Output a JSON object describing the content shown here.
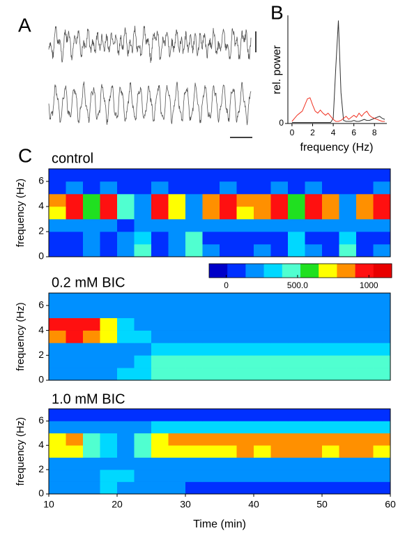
{
  "chart_data": [
    {
      "type": "traces",
      "label": "A"
    },
    {
      "type": "line",
      "label": "B",
      "xlabel": "frequency (Hz)",
      "ylabel": "rel. power",
      "x": [
        0,
        0.25,
        0.5,
        0.75,
        1,
        1.25,
        1.5,
        1.75,
        2,
        2.25,
        2.5,
        2.75,
        3,
        3.25,
        3.5,
        3.75,
        4,
        4.25,
        4.5,
        4.75,
        5,
        5.25,
        5.5,
        5.75,
        6,
        6.25,
        6.5,
        6.75,
        7,
        7.25,
        7.5,
        7.75,
        8,
        8.25,
        8.5,
        8.75,
        9
      ],
      "series": [
        {
          "color": "#303030",
          "values": [
            0.01,
            0.01,
            0.01,
            0.01,
            0.01,
            0.01,
            0.01,
            0.01,
            0.01,
            0.01,
            0.01,
            0.01,
            0.01,
            0.01,
            0.01,
            0.01,
            0.05,
            0.55,
            1.0,
            0.3,
            0.03,
            0.02,
            0.02,
            0.02,
            0.03,
            0.02,
            0.02,
            0.03,
            0.04,
            0.03,
            0.03,
            0.04,
            0.05,
            0.06,
            0.07,
            0.05,
            0.04
          ]
        },
        {
          "color": "#f03020",
          "values": [
            0.02,
            0.05,
            0.08,
            0.1,
            0.12,
            0.18,
            0.24,
            0.25,
            0.18,
            0.12,
            0.1,
            0.13,
            0.1,
            0.08,
            0.1,
            0.07,
            0.04,
            0.02,
            0.02,
            0.03,
            0.05,
            0.07,
            0.04,
            0.06,
            0.08,
            0.06,
            0.1,
            0.07,
            0.1,
            0.12,
            0.08,
            0.06,
            0.05,
            0.04,
            0.03,
            0.02,
            0.02
          ]
        }
      ],
      "xlim": [
        -0.4,
        9.2
      ],
      "xticks": [
        0,
        2,
        4,
        6,
        8
      ],
      "ylim": [
        0,
        1.05
      ],
      "yticks": [
        0
      ]
    },
    {
      "type": "heatmap",
      "label": "C",
      "title": "control",
      "ylabel": "frequency (Hz)",
      "xlim": [
        10,
        60
      ],
      "ylim": [
        0,
        7
      ],
      "yticks": [
        0,
        2,
        4,
        6
      ],
      "xbins": [
        10,
        12.5,
        15,
        17.5,
        20,
        22.5,
        25,
        27.5,
        30,
        32.5,
        35,
        37.5,
        40,
        42.5,
        45,
        47.5,
        50,
        52.5,
        55,
        57.5,
        60
      ],
      "ybins": [
        0,
        1,
        2,
        3,
        4,
        5,
        6,
        7
      ],
      "values": [
        [
          100,
          100,
          200,
          100,
          200,
          400,
          100,
          200,
          450,
          150,
          100,
          100,
          150,
          100,
          350,
          150,
          100,
          400,
          100,
          150
        ],
        [
          80,
          80,
          150,
          80,
          150,
          350,
          80,
          200,
          400,
          100,
          80,
          80,
          100,
          80,
          300,
          100,
          80,
          350,
          80,
          100
        ],
        [
          150,
          150,
          150,
          150,
          100,
          200,
          150,
          150,
          250,
          150,
          150,
          150,
          150,
          150,
          200,
          150,
          150,
          200,
          150,
          150
        ],
        [
          700,
          950,
          550,
          950,
          400,
          150,
          950,
          650,
          200,
          850,
          950,
          750,
          850,
          950,
          550,
          950,
          850,
          200,
          850,
          950
        ],
        [
          800,
          1000,
          600,
          1000,
          400,
          150,
          1000,
          700,
          200,
          900,
          1000,
          800,
          900,
          1000,
          600,
          1000,
          900,
          200,
          900,
          1000
        ],
        [
          100,
          150,
          100,
          150,
          80,
          50,
          150,
          100,
          50,
          100,
          150,
          100,
          100,
          150,
          80,
          150,
          100,
          50,
          100,
          150
        ],
        [
          30,
          30,
          30,
          30,
          30,
          30,
          30,
          30,
          30,
          30,
          30,
          30,
          30,
          30,
          30,
          30,
          30,
          30,
          30,
          30
        ]
      ]
    },
    {
      "type": "heatmap",
      "title": "0.2 mM BIC",
      "ylabel": "frequency (Hz)",
      "xlim": [
        10,
        60
      ],
      "ylim": [
        0,
        7
      ],
      "yticks": [
        0,
        2,
        4,
        6
      ],
      "xbins": [
        10,
        12.5,
        15,
        17.5,
        20,
        22.5,
        25,
        27.5,
        30,
        32.5,
        35,
        37.5,
        40,
        42.5,
        45,
        47.5,
        50,
        52.5,
        55,
        57.5,
        60
      ],
      "ybins": [
        0,
        1,
        2,
        3,
        4,
        5,
        6,
        7
      ],
      "values": [
        [
          150,
          150,
          150,
          200,
          300,
          350,
          450,
          500,
          450,
          500,
          500,
          450,
          500,
          500,
          450,
          450,
          500,
          450,
          500,
          450
        ],
        [
          150,
          150,
          150,
          200,
          250,
          300,
          400,
          450,
          400,
          450,
          450,
          400,
          450,
          450,
          400,
          400,
          450,
          400,
          450,
          400
        ],
        [
          200,
          200,
          200,
          250,
          250,
          250,
          300,
          300,
          300,
          300,
          300,
          300,
          300,
          300,
          300,
          300,
          300,
          300,
          300,
          300
        ],
        [
          900,
          950,
          900,
          700,
          350,
          300,
          250,
          250,
          250,
          250,
          250,
          250,
          250,
          250,
          250,
          250,
          250,
          250,
          250,
          250
        ],
        [
          950,
          1000,
          950,
          650,
          300,
          250,
          200,
          200,
          200,
          200,
          200,
          200,
          200,
          200,
          200,
          200,
          200,
          200,
          200,
          200
        ],
        [
          200,
          200,
          200,
          250,
          250,
          250,
          200,
          200,
          200,
          200,
          200,
          200,
          200,
          200,
          200,
          200,
          200,
          200,
          200,
          200
        ],
        [
          150,
          150,
          150,
          200,
          200,
          200,
          150,
          150,
          150,
          150,
          150,
          150,
          150,
          150,
          150,
          150,
          150,
          150,
          150,
          150
        ]
      ]
    },
    {
      "type": "heatmap",
      "title": "1.0 mM BIC",
      "ylabel": "frequency (Hz)",
      "xlabel": "Time (min)",
      "xlim": [
        10,
        60
      ],
      "xticks": [
        10,
        20,
        30,
        40,
        50,
        60
      ],
      "ylim": [
        0,
        7
      ],
      "yticks": [
        0,
        2,
        4,
        6
      ],
      "xbins": [
        10,
        12.5,
        15,
        17.5,
        20,
        22.5,
        25,
        27.5,
        30,
        32.5,
        35,
        37.5,
        40,
        42.5,
        45,
        47.5,
        50,
        52.5,
        55,
        57.5,
        60
      ],
      "ybins": [
        0,
        1,
        2,
        3,
        4,
        5,
        6,
        7
      ],
      "values": [
        [
          250,
          250,
          250,
          300,
          250,
          200,
          150,
          150,
          100,
          100,
          100,
          100,
          100,
          100,
          100,
          100,
          100,
          100,
          100,
          100
        ],
        [
          250,
          250,
          250,
          350,
          300,
          250,
          150,
          150,
          150,
          150,
          150,
          150,
          150,
          150,
          150,
          150,
          150,
          150,
          150,
          150
        ],
        [
          200,
          200,
          250,
          250,
          200,
          200,
          200,
          200,
          200,
          200,
          200,
          200,
          200,
          200,
          200,
          200,
          200,
          200,
          200,
          200
        ],
        [
          650,
          750,
          450,
          300,
          250,
          450,
          650,
          700,
          750,
          750,
          750,
          800,
          750,
          800,
          800,
          800,
          750,
          800,
          800,
          750
        ],
        [
          750,
          850,
          500,
          300,
          250,
          500,
          750,
          800,
          850,
          850,
          850,
          900,
          850,
          900,
          900,
          900,
          850,
          900,
          900,
          850
        ],
        [
          150,
          150,
          150,
          150,
          150,
          250,
          350,
          350,
          350,
          350,
          350,
          350,
          350,
          350,
          350,
          350,
          350,
          350,
          350,
          350
        ],
        [
          50,
          50,
          50,
          50,
          50,
          100,
          100,
          100,
          100,
          100,
          100,
          100,
          100,
          100,
          100,
          100,
          100,
          100,
          100,
          100
        ]
      ]
    }
  ],
  "colorbar": {
    "clim": [
      -120,
      1160
    ],
    "colors": [
      "#0000c8",
      "#0030ff",
      "#0090ff",
      "#00d8ff",
      "#50ffd0",
      "#20e020",
      "#ffff00",
      "#ff9000",
      "#ff1010",
      "#e80000"
    ],
    "ticks": [
      0,
      {
        "value": 500,
        "label": "500.0"
      },
      1000
    ]
  }
}
